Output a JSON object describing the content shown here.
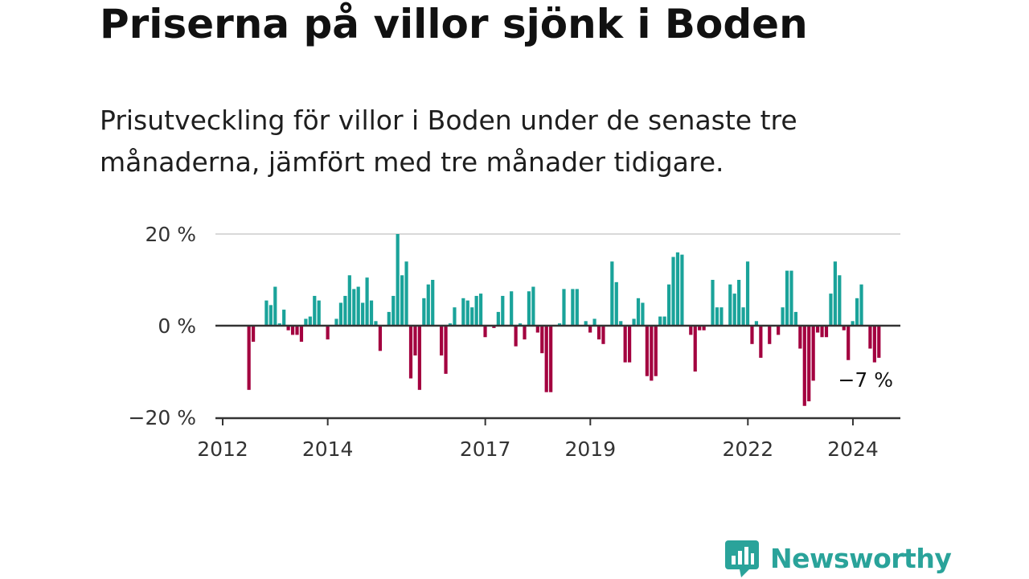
{
  "title": "Priserna på villor sjönk i Boden",
  "subtitle": "Prisutveckling för villor i Boden under de senaste tre månaderna, jämfört med tre månader tidigare.",
  "brand": {
    "name": "Newsworthy",
    "icon": "newsworthy-logo-icon"
  },
  "colors": {
    "positive": "#1aa39a",
    "negative": "#a3003f",
    "axis": "#333333",
    "grid": "#d9d9d9"
  },
  "chart_data": {
    "type": "bar",
    "title": "Priserna på villor sjönk i Boden",
    "ylabel": "",
    "xlabel": "",
    "ylim": [
      -20,
      20
    ],
    "xlim": [
      2011.9,
      2024.45
    ],
    "y_ticks": [
      {
        "value": 20,
        "label": "20 %"
      },
      {
        "value": 0,
        "label": "0 %"
      },
      {
        "value": -20,
        "label": "−20 %"
      }
    ],
    "x_ticks": [
      {
        "value": 2012,
        "label": "2012"
      },
      {
        "value": 2014,
        "label": "2014"
      },
      {
        "value": 2017,
        "label": "2017"
      },
      {
        "value": 2019,
        "label": "2019"
      },
      {
        "value": 2022,
        "label": "2022"
      },
      {
        "value": 2024,
        "label": "2024"
      }
    ],
    "start": 2012.0,
    "step": 0.0833,
    "values": [
      0,
      0,
      0,
      0,
      0,
      0,
      -14,
      -3.5,
      0,
      0,
      5.5,
      4.5,
      8.5,
      0.5,
      3.5,
      -1,
      -2,
      -2,
      -3.5,
      1.5,
      2,
      6.5,
      5.5,
      0,
      -3,
      0,
      1.5,
      5,
      6.5,
      11,
      8,
      8.5,
      5,
      10.5,
      5.5,
      1,
      -5.5,
      0,
      3,
      6.5,
      20,
      11,
      14,
      -11.5,
      -6.5,
      -14,
      6,
      9,
      10,
      0,
      -6.5,
      -10.5,
      0.5,
      4,
      0,
      6,
      5.5,
      4,
      6.5,
      7,
      -2.5,
      0,
      -0.5,
      3,
      6.5,
      0,
      7.5,
      -4.5,
      0.5,
      -3,
      7.5,
      8.5,
      -1.5,
      -6,
      -14.5,
      -14.5,
      0,
      0.5,
      8,
      0,
      8,
      8,
      0,
      1,
      -1.5,
      1.5,
      -3,
      -4,
      0,
      14,
      9.5,
      1,
      -8,
      -8,
      1.5,
      6,
      5,
      -11,
      -12,
      -11,
      2,
      2,
      9,
      15,
      16,
      15.5,
      0,
      -2,
      -10,
      -1,
      -1,
      0,
      10,
      4,
      4,
      0,
      9,
      7,
      10,
      4,
      14,
      -4,
      1,
      -7,
      0,
      -4,
      0,
      -2,
      4,
      12,
      12,
      3,
      -5,
      -17.5,
      -16.5,
      -12,
      -1.5,
      -2.5,
      -2.5,
      7,
      14,
      11,
      -1,
      -7.5,
      1,
      6,
      9,
      0,
      -5,
      -8,
      -7,
      0
    ],
    "annotation": {
      "value": -7,
      "label": "−7 %"
    }
  }
}
